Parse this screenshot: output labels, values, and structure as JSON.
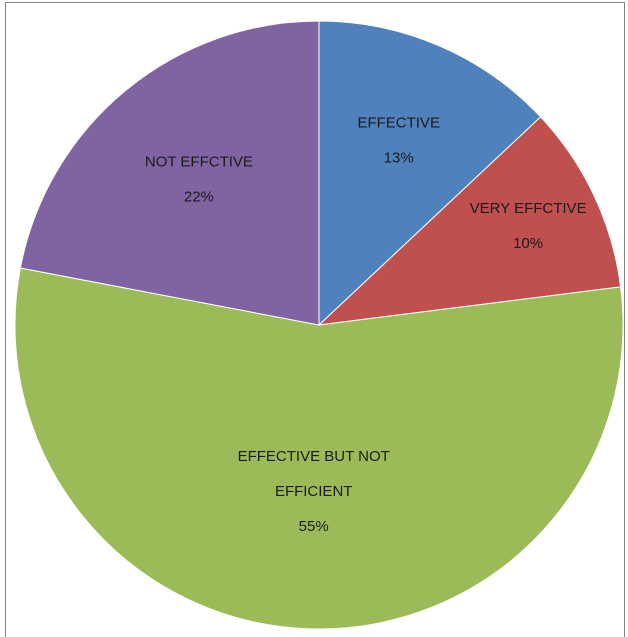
{
  "chart_data": {
    "type": "pie",
    "title": "",
    "slices": [
      {
        "label_lines": [
          "EFFECTIVE"
        ],
        "label": "EFFECTIVE",
        "value": 13,
        "value_label": "13%",
        "color": "#4f81bd"
      },
      {
        "label_lines": [
          "VERY EFFCTIVE"
        ],
        "label": "VERY EFFCTIVE",
        "value": 10,
        "value_label": "10%",
        "color": "#c0504d"
      },
      {
        "label_lines": [
          "EFFECTIVE BUT NOT",
          "EFFICIENT"
        ],
        "label": "EFFECTIVE BUT NOT EFFICIENT",
        "value": 55,
        "value_label": "55%",
        "color": "#9bbb59"
      },
      {
        "label_lines": [
          "NOT EFFCTIVE"
        ],
        "label": "NOT EFFCTIVE",
        "value": 22,
        "value_label": "22%",
        "color": "#8064a2"
      }
    ],
    "start_angle_deg": 0,
    "direction": "clockwise",
    "legend": "none",
    "label_position": "inside"
  }
}
